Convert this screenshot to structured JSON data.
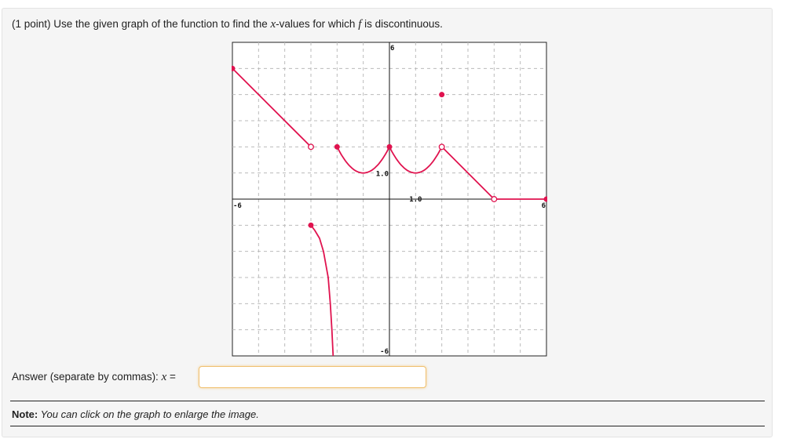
{
  "problem": {
    "prefix": "(1 point) Use the given graph of the function to find the ",
    "var_x": "x",
    "middle": "-values for which ",
    "var_f": "f",
    "suffix": " is discontinuous."
  },
  "answer": {
    "label": "Answer (separate by commas): ",
    "var": "x",
    "equals": " =",
    "value": "",
    "placeholder": ""
  },
  "note": {
    "bold": "Note:",
    "text": " You can click on the graph to enlarge the image."
  },
  "chart_data": {
    "type": "line",
    "xlim": [
      -6,
      6
    ],
    "ylim": [
      -6,
      6
    ],
    "grid": true,
    "grid_step": 1,
    "tick_labels": {
      "x_min": "-6",
      "x_max": "6",
      "y_max": "6",
      "y_min": "-6",
      "x_unit": "1.0",
      "y_unit": "1.0"
    },
    "color": "#e0134f",
    "pieces": [
      {
        "points": [
          [
            -6,
            5
          ],
          [
            -3,
            2
          ]
        ]
      },
      {
        "function": "(x+1)^2+1",
        "domain": [
          -2,
          0
        ]
      },
      {
        "function": "(x-1)^2+1",
        "domain": [
          0,
          2
        ]
      },
      {
        "points": [
          [
            2,
            2
          ],
          [
            4,
            0
          ]
        ]
      },
      {
        "points": [
          [
            4,
            0
          ],
          [
            6,
            0
          ]
        ]
      },
      {
        "points": [
          [
            -3,
            -1
          ],
          [
            -2.85,
            -1.2
          ],
          [
            -2.67,
            -1.5
          ],
          [
            -2.52,
            -2
          ],
          [
            -2.34,
            -3
          ],
          [
            -2.26,
            -4
          ],
          [
            -2.2,
            -5
          ],
          [
            -2.15,
            -6
          ]
        ]
      }
    ],
    "closed_points": [
      [
        -6,
        5
      ],
      [
        -2,
        2
      ],
      [
        0,
        2
      ],
      [
        2,
        4
      ],
      [
        -3,
        -1
      ],
      [
        6,
        0
      ]
    ],
    "open_points": [
      [
        -3,
        2
      ],
      [
        2,
        2
      ],
      [
        4,
        0
      ]
    ]
  }
}
